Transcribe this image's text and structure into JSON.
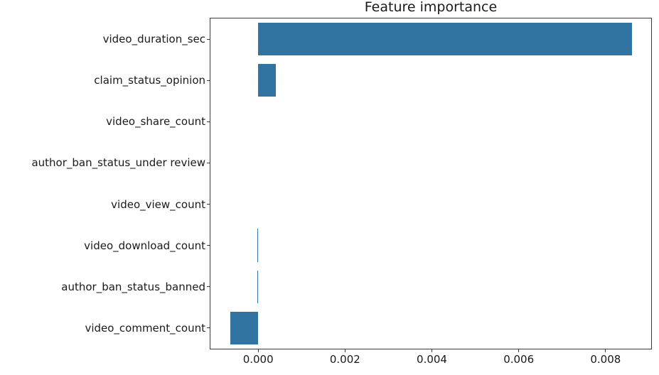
{
  "figure": {
    "background_color": "#ffffff",
    "text_color": "#1a1a1a",
    "spine_color": "#3a3a3a"
  },
  "chart_data": {
    "type": "bar",
    "orientation": "horizontal",
    "title": "Feature importance",
    "xlabel": "",
    "ylabel": "",
    "categories": [
      "video_duration_sec",
      "claim_status_opinion",
      "video_share_count",
      "author_ban_status_under review",
      "video_view_count",
      "video_download_count",
      "author_ban_status_banned",
      "video_comment_count"
    ],
    "values": [
      0.0086,
      0.0004,
      0.0,
      0.0,
      0.0,
      -2e-05,
      -2e-05,
      -0.00064
    ],
    "xlim": [
      -0.0011,
      0.00905
    ],
    "x_ticks": [
      0.0,
      0.002,
      0.004,
      0.006,
      0.008
    ],
    "x_tick_labels": [
      "0.000",
      "0.002",
      "0.004",
      "0.006",
      "0.008"
    ],
    "bar_color": "#3274a1",
    "grid": false,
    "legend": null
  }
}
